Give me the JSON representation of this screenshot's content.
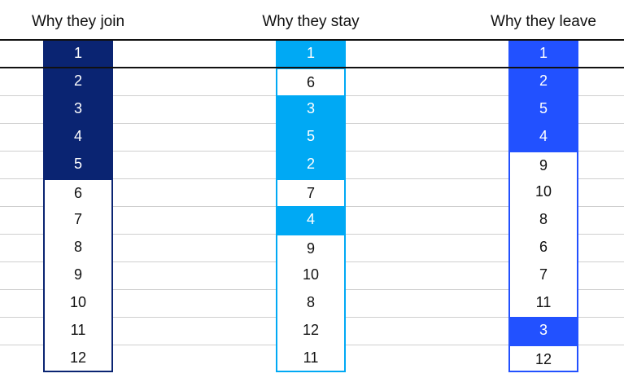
{
  "chart_data": {
    "type": "table",
    "columns": [
      {
        "title": "Why they join",
        "values": [
          "1",
          "2",
          "3",
          "4",
          "5",
          "6",
          "7",
          "8",
          "9",
          "10",
          "11",
          "12"
        ],
        "highlighted": [
          true,
          true,
          true,
          true,
          true,
          false,
          false,
          false,
          false,
          false,
          false,
          false
        ],
        "color": "#0a2472"
      },
      {
        "title": "Why they stay",
        "values": [
          "1",
          "6",
          "3",
          "5",
          "2",
          "7",
          "4",
          "9",
          "10",
          "8",
          "12",
          "11"
        ],
        "highlighted": [
          true,
          false,
          true,
          true,
          true,
          false,
          true,
          false,
          false,
          false,
          false,
          false
        ],
        "color": "#00a9f4"
      },
      {
        "title": "Why they leave",
        "values": [
          "1",
          "2",
          "5",
          "4",
          "9",
          "10",
          "8",
          "6",
          "7",
          "11",
          "3",
          "12"
        ],
        "highlighted": [
          true,
          true,
          true,
          true,
          false,
          false,
          false,
          false,
          false,
          false,
          true,
          false
        ],
        "color": "#2251ff"
      }
    ]
  }
}
